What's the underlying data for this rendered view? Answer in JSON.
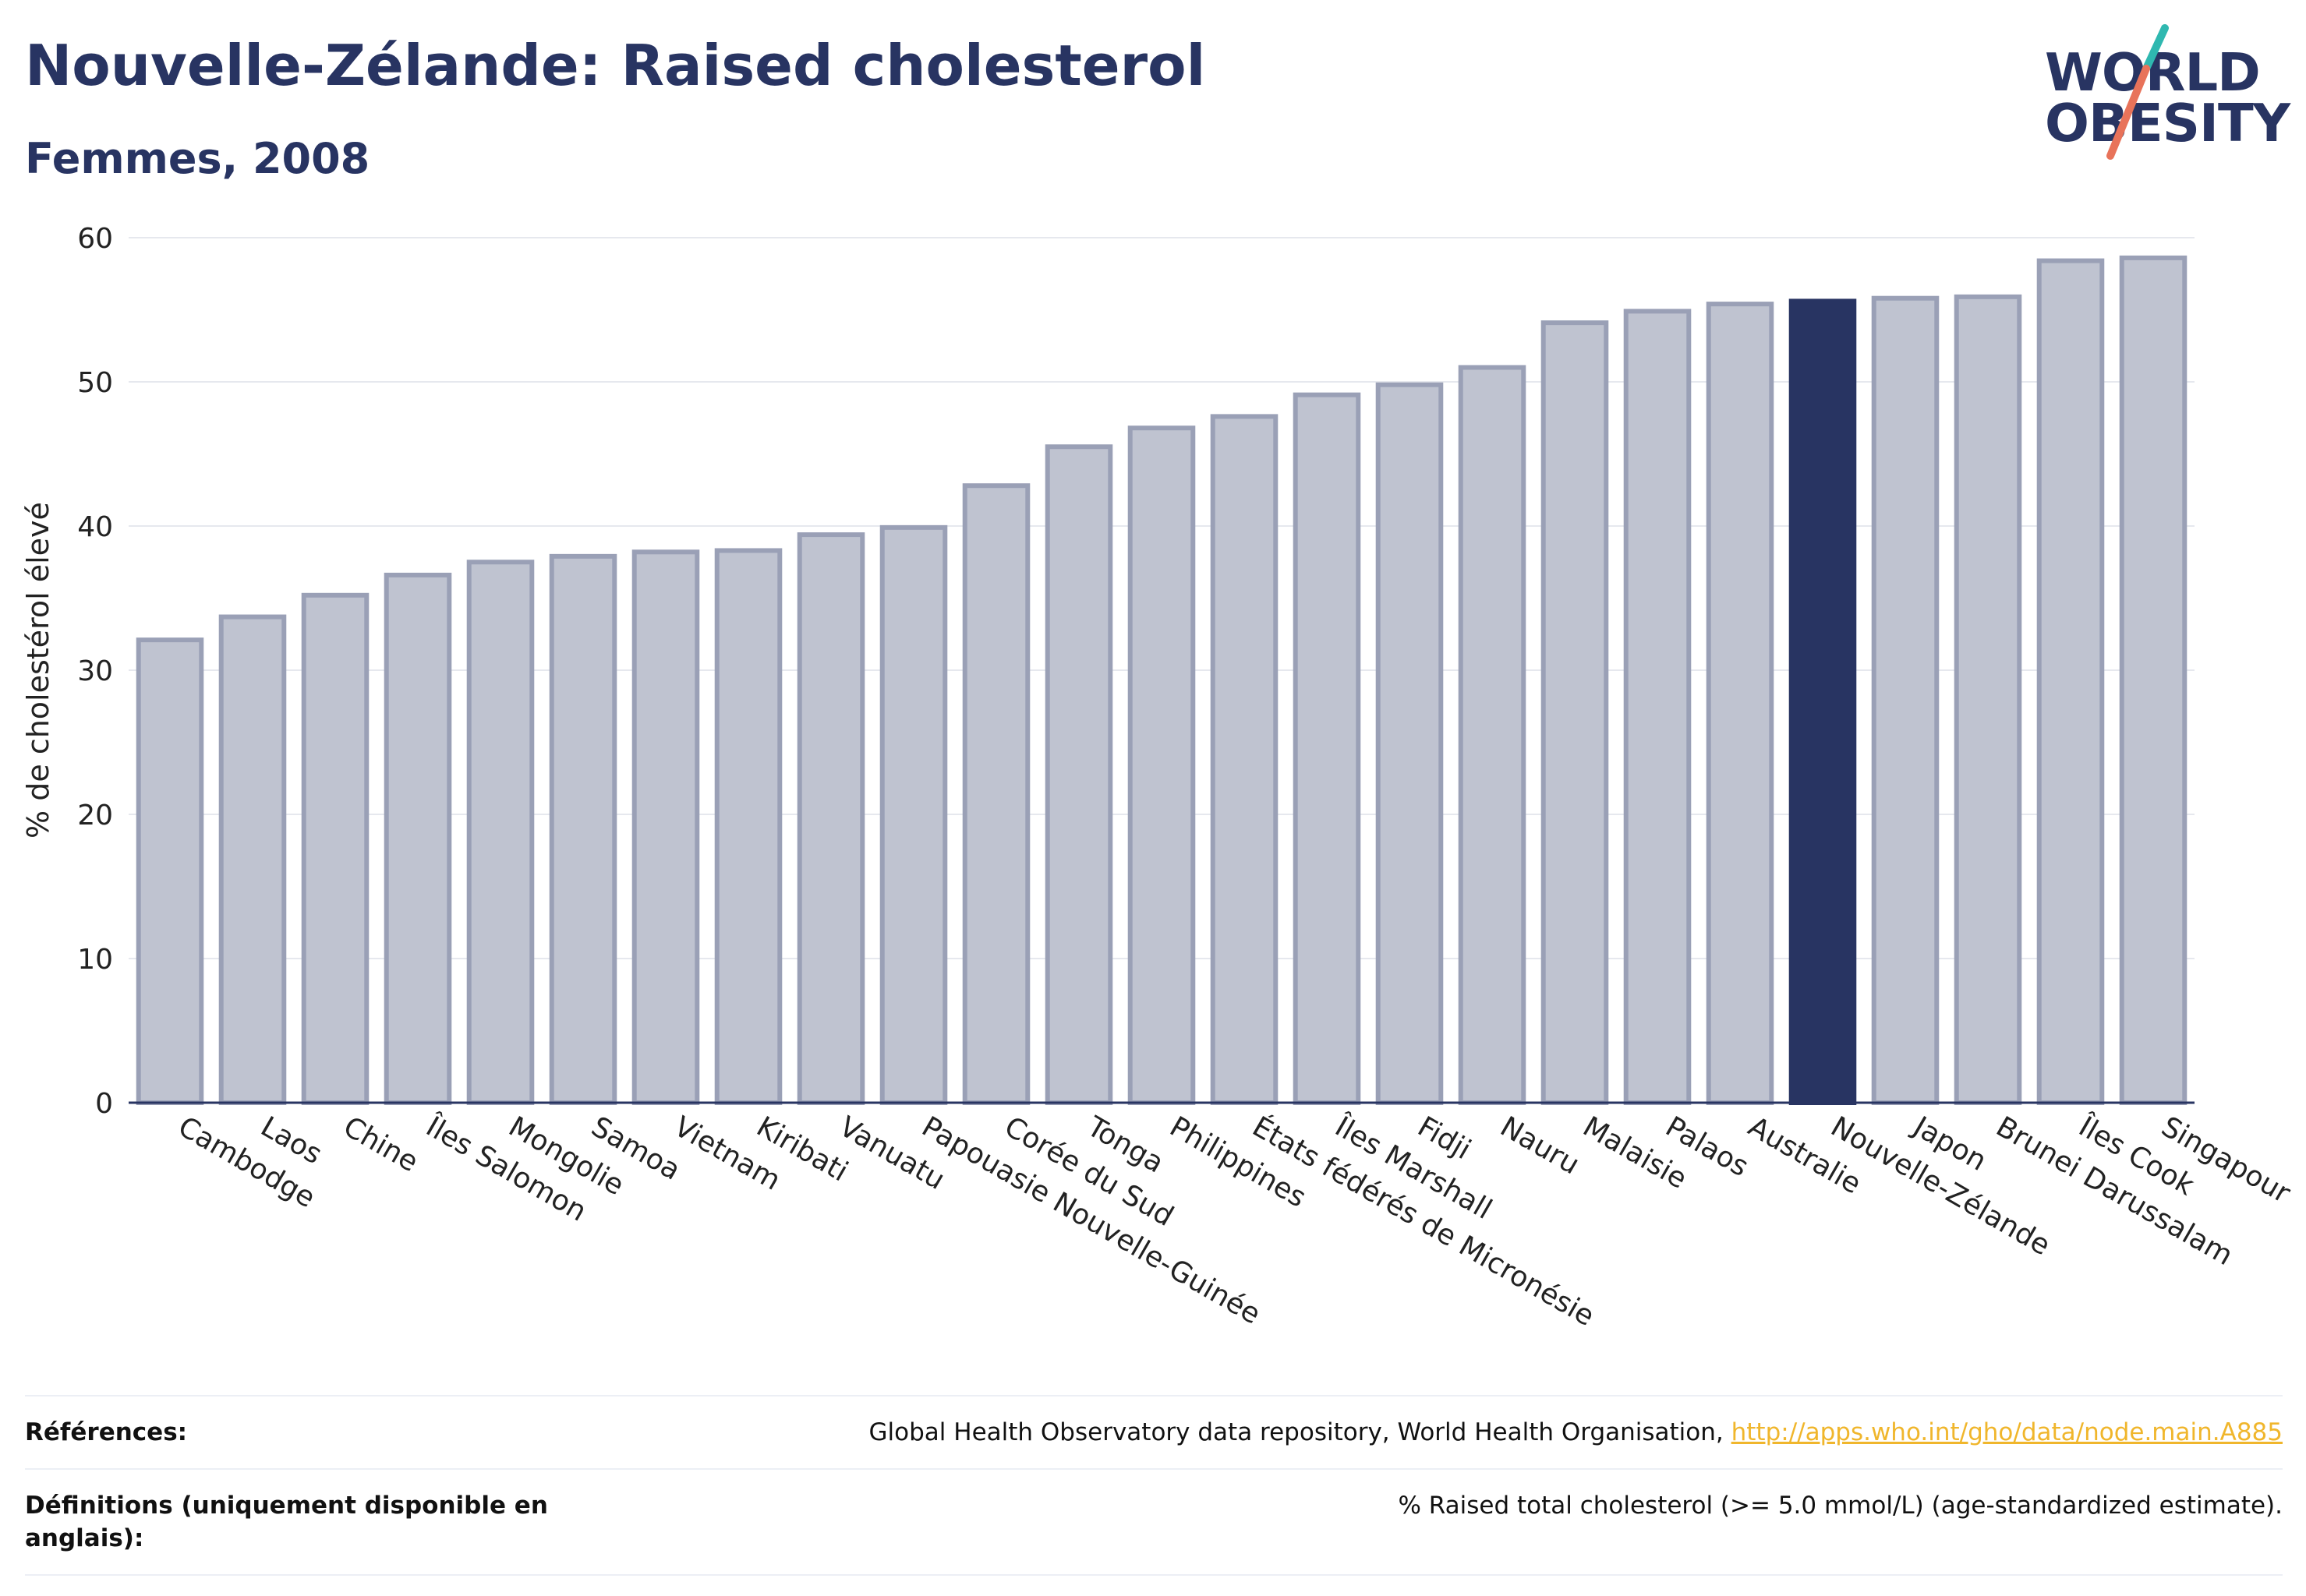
{
  "header": {
    "title": "Nouvelle-Zélande: Raised cholesterol",
    "subtitle": "Femmes, 2008"
  },
  "logo": {
    "line1": "WORLD",
    "line2": "OBESITY",
    "slash_colors": [
      "#2fb8b0",
      "#e8735a"
    ]
  },
  "colors": {
    "bar_fill": "#bfc3d0",
    "bar_stroke": "#9aa0b6",
    "highlight": "#283462",
    "grid": "#e6e8ee",
    "axis": "#283462"
  },
  "chart_data": {
    "type": "bar",
    "ylabel": "% de cholestérol élevé",
    "xlabel": "",
    "ylim": [
      0,
      60
    ],
    "yticks": [
      0,
      10,
      20,
      30,
      40,
      50,
      60
    ],
    "grid": true,
    "highlight": "Nouvelle-Zélande",
    "categories": [
      "Cambodge",
      "Laos",
      "Chine",
      "Îles Salomon",
      "Mongolie",
      "Samoa",
      "Vietnam",
      "Kiribati",
      "Vanuatu",
      "Papouasie Nouvelle-Guinée",
      "Corée du Sud",
      "Tonga",
      "Philippines",
      "États fédérés de Micronésie",
      "Îles Marshall",
      "Fidji",
      "Nauru",
      "Malaisie",
      "Palaos",
      "Australie",
      "Nouvelle-Zélande",
      "Japon",
      "Brunei Darussalam",
      "Îles Cook",
      "Singapour"
    ],
    "values": [
      32.1,
      33.7,
      35.2,
      36.6,
      37.5,
      37.9,
      38.2,
      38.3,
      39.4,
      39.9,
      42.8,
      45.5,
      46.8,
      47.6,
      49.1,
      49.8,
      51.0,
      54.1,
      54.9,
      55.4,
      55.6,
      55.8,
      55.9,
      58.4,
      58.6
    ]
  },
  "footer": {
    "references_label": "Références:",
    "references_text": "Global Health Observatory data repository, World Health Organisation, ",
    "references_link": "http://apps.who.int/gho/data/node.main.A885",
    "definitions_label": "Définitions (uniquement disponible en anglais):",
    "definitions_text": "% Raised total cholesterol (>= 5.0 mmol/L) (age-standardized estimate)."
  }
}
